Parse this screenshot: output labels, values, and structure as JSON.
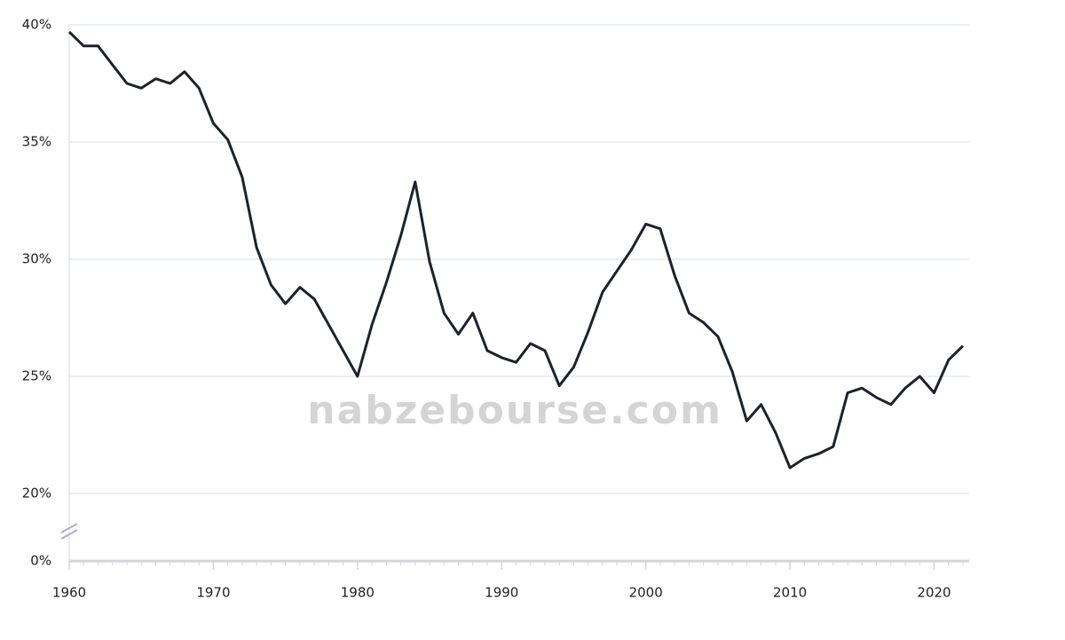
{
  "chart_data": {
    "type": "line",
    "watermark": "nabzebourse.com",
    "x": [
      1960,
      1961,
      1962,
      1963,
      1964,
      1965,
      1966,
      1967,
      1968,
      1969,
      1970,
      1971,
      1972,
      1973,
      1974,
      1975,
      1976,
      1977,
      1978,
      1979,
      1980,
      1981,
      1982,
      1983,
      1984,
      1985,
      1986,
      1987,
      1988,
      1989,
      1990,
      1991,
      1992,
      1993,
      1994,
      1995,
      1996,
      1997,
      1998,
      1999,
      2000,
      2001,
      2002,
      2003,
      2004,
      2005,
      2006,
      2007,
      2008,
      2009,
      2010,
      2011,
      2012,
      2013,
      2014,
      2015,
      2016,
      2017,
      2018,
      2019,
      2020,
      2021,
      2022
    ],
    "series": [
      {
        "color": "#1b222b",
        "values": [
          39.7,
          39.1,
          39.1,
          38.3,
          37.5,
          37.3,
          37.7,
          37.5,
          38.0,
          37.3,
          35.8,
          35.1,
          33.5,
          30.5,
          28.9,
          28.1,
          28.8,
          28.3,
          27.2,
          26.1,
          25.0,
          27.2,
          29.0,
          31.0,
          33.3,
          29.9,
          27.7,
          26.8,
          27.7,
          26.1,
          25.8,
          25.6,
          26.4,
          26.1,
          24.6,
          25.4,
          26.9,
          28.6,
          29.5,
          30.4,
          31.5,
          31.3,
          29.3,
          27.7,
          27.3,
          26.7,
          25.2,
          23.1,
          23.8,
          22.6,
          21.1,
          21.5,
          21.7,
          22.0,
          24.3,
          24.5,
          24.1,
          23.8,
          24.5,
          25.0,
          24.3,
          25.7,
          26.3
        ]
      }
    ],
    "xlim": [
      1960,
      2022
    ],
    "xticks": [
      1960,
      1970,
      1980,
      1990,
      2000,
      2010,
      2020
    ],
    "ylim": [
      0,
      40
    ],
    "axis_break": [
      0,
      20
    ],
    "yticks": [
      {
        "value": 0,
        "label": "0%"
      },
      {
        "value": 20,
        "label": "20%"
      },
      {
        "value": 25,
        "label": "25%"
      },
      {
        "value": 30,
        "label": "30%"
      },
      {
        "value": 35,
        "label": "35%"
      },
      {
        "value": 40,
        "label": "40%"
      }
    ],
    "grid": true
  }
}
